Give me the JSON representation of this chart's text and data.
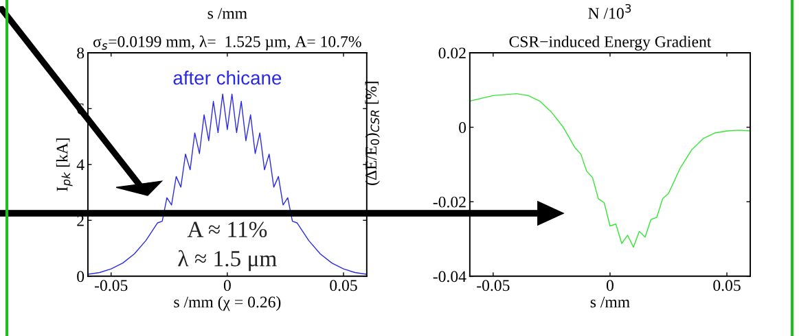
{
  "chart_data": [
    {
      "type": "line",
      "title": "σ$_{s}$=0.0199 mm, λ=  1.525 µm, A= 10.7%",
      "xlabel": "s /mm (χ = 0.26)",
      "ylabel": "I$_{pk}$ [kA]",
      "annotations": [
        "s /mm",
        "after chicane",
        "A ≈ 11%",
        "λ ≈ 1.5 μm"
      ],
      "xlim": [
        -0.06,
        0.06
      ],
      "xticks": [
        -0.05,
        0,
        0.05
      ],
      "ylim": [
        0,
        8
      ],
      "yticks": [
        0,
        2,
        4,
        6,
        8
      ],
      "grid": false,
      "legend": false,
      "series": [
        {
          "color": "#2a2ae6",
          "x": [
            -0.06,
            -0.055,
            -0.05,
            -0.045,
            -0.04,
            -0.035,
            -0.03,
            -0.028,
            -0.026,
            -0.024,
            -0.022,
            -0.02,
            -0.018,
            -0.016,
            -0.014,
            -0.012,
            -0.01,
            -0.008,
            -0.006,
            -0.004,
            -0.002,
            0,
            0.002,
            0.004,
            0.006,
            0.008,
            0.01,
            0.012,
            0.014,
            0.016,
            0.018,
            0.02,
            0.022,
            0.024,
            0.026,
            0.028,
            0.03,
            0.035,
            0.04,
            0.045,
            0.05,
            0.055,
            0.06
          ],
          "values": [
            0.07,
            0.13,
            0.26,
            0.47,
            0.8,
            1.28,
            1.91,
            1.97,
            2.81,
            2.55,
            3.57,
            3.19,
            4.37,
            3.81,
            5.13,
            4.39,
            5.78,
            4.85,
            6.26,
            5.14,
            6.52,
            5.25,
            6.52,
            5.14,
            6.26,
            4.85,
            5.78,
            4.39,
            5.13,
            3.81,
            4.37,
            3.19,
            3.57,
            2.55,
            2.81,
            1.97,
            1.91,
            1.28,
            0.8,
            0.47,
            0.26,
            0.13,
            0.07
          ]
        }
      ]
    },
    {
      "type": "line",
      "title": "CSR−induced Energy Gradient",
      "xlabel": "s /mm",
      "ylabel": "(ΔE/E$_{0}$)$_{CSR}$ [%]",
      "annotations": [
        "N /10$^{3}$"
      ],
      "xlim": [
        -0.06,
        0.06
      ],
      "xticks": [
        -0.05,
        0,
        0.05
      ],
      "ylim": [
        -0.04,
        0.02
      ],
      "yticks": [
        -0.04,
        -0.02,
        0,
        0.02
      ],
      "grid": false,
      "legend": false,
      "series": [
        {
          "color": "#33e633",
          "x": [
            -0.06,
            -0.05,
            -0.04,
            -0.035,
            -0.03,
            -0.025,
            -0.02,
            -0.015,
            -0.0125,
            -0.01,
            -0.0075,
            -0.005,
            -0.0025,
            0,
            0.0025,
            0.005,
            0.0075,
            0.01,
            0.0125,
            0.015,
            0.0175,
            0.02,
            0.0225,
            0.025,
            0.03,
            0.035,
            0.04,
            0.045,
            0.05,
            0.055,
            0.06
          ],
          "values": [
            0.007,
            0.0085,
            0.009,
            0.0085,
            0.007,
            0.004,
            0.0,
            -0.0055,
            -0.0072,
            -0.0118,
            -0.0135,
            -0.0192,
            -0.0203,
            -0.0265,
            -0.026,
            -0.0312,
            -0.029,
            -0.0322,
            -0.028,
            -0.0295,
            -0.0248,
            -0.0242,
            -0.0192,
            -0.0178,
            -0.011,
            -0.006,
            -0.003,
            -0.0015,
            -0.001,
            -0.0008,
            -0.001
          ]
        }
      ]
    }
  ]
}
